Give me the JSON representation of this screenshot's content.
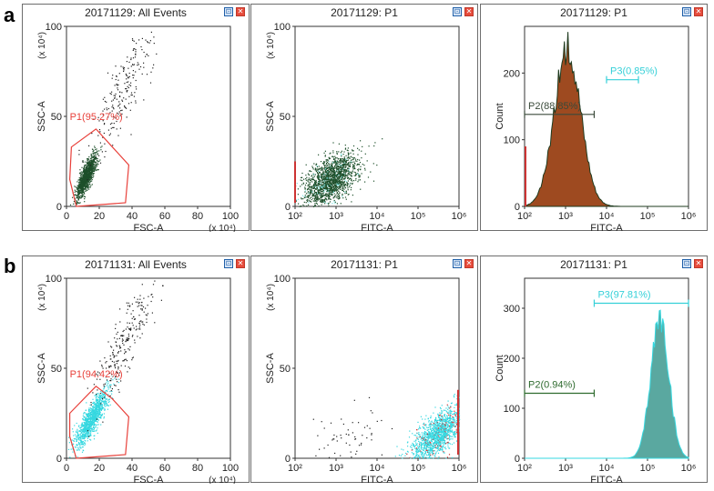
{
  "row_labels": [
    "a",
    "b"
  ],
  "buttons": {
    "min_glyph": "⊡",
    "close_glyph": "✕"
  },
  "panels": [
    {
      "title": "20171129: All Events",
      "xlabel": "FSC-A",
      "ylabel": "SSC-A",
      "x_exp": "(x 10⁴)",
      "y_exp": "(x 10⁴)",
      "x_ticks": [
        "0",
        "20",
        "40",
        "60",
        "80",
        "100"
      ],
      "y_ticks": [
        "0",
        "50",
        "100"
      ],
      "gate": "P1(95.27%)"
    },
    {
      "title": "20171129: P1",
      "xlabel": "FITC-A",
      "ylabel": "SSC-A",
      "y_exp": "(x 10⁴)",
      "x_ticks": [
        "10²",
        "10³",
        "10⁴",
        "10⁵",
        "10⁶"
      ],
      "y_ticks": [
        "0",
        "50",
        "100"
      ]
    },
    {
      "title": "20171129: P1",
      "xlabel": "FITC-A",
      "ylabel": "Count",
      "x_ticks": [
        "10²",
        "10³",
        "10⁴",
        "10⁵",
        "10⁶"
      ],
      "y_ticks": [
        "0",
        "100",
        "200"
      ],
      "gates": [
        "P2(88.85%)",
        "P3(0.85%)"
      ]
    },
    {
      "title": "20171131: All Events",
      "xlabel": "FSC-A",
      "ylabel": "SSC-A",
      "x_exp": "(x 10⁴)",
      "y_exp": "(x 10⁴)",
      "x_ticks": [
        "0",
        "20",
        "40",
        "60",
        "80",
        "100"
      ],
      "y_ticks": [
        "0",
        "50",
        "100"
      ],
      "gate": "P1(94.42%)"
    },
    {
      "title": "20171131: P1",
      "xlabel": "FITC-A",
      "ylabel": "SSC-A",
      "y_exp": "(x 10⁴)",
      "x_ticks": [
        "10²",
        "10³",
        "10⁴",
        "10⁵",
        "10⁶"
      ],
      "y_ticks": [
        "0",
        "50",
        "100"
      ]
    },
    {
      "title": "20171131: P1",
      "xlabel": "FITC-A",
      "ylabel": "Count",
      "x_ticks": [
        "10²",
        "10³",
        "10⁴",
        "10⁵",
        "10⁶"
      ],
      "y_ticks": [
        "0",
        "100",
        "200",
        "300"
      ],
      "gates": [
        "P2(0.94%)",
        "P3(97.81%)"
      ]
    }
  ],
  "chart_data": [
    {
      "type": "scatter",
      "title": "20171129: All Events",
      "xlabel": "FSC-A",
      "ylabel": "SSC-A",
      "xlim": [
        0,
        100
      ],
      "ylim": [
        0,
        100
      ],
      "units": "x 10^4",
      "gate": {
        "name": "P1",
        "percent": 95.27,
        "vertices": [
          [
            3,
            33
          ],
          [
            18,
            43
          ],
          [
            28,
            33
          ],
          [
            38,
            23
          ],
          [
            36,
            2
          ],
          [
            6,
            0
          ],
          [
            2,
            15
          ]
        ]
      },
      "clusters": [
        {
          "cx": 12,
          "cy": 17,
          "sx": 3,
          "sy": 6,
          "n": 1100,
          "corr": 0.8
        },
        {
          "cx": 35,
          "cy": 65,
          "sx": 10,
          "sy": 18,
          "n": 220,
          "corr": 0.85
        }
      ],
      "colors": {
        "dense": "#1d4f2a",
        "sparse": "#222222",
        "gate": "#e8403a"
      }
    },
    {
      "type": "scatter",
      "title": "20171129: P1",
      "xlabel": "FITC-A",
      "ylabel": "SSC-A",
      "xscale": "log",
      "xlim": [
        100,
        1000000
      ],
      "ylim": [
        0,
        100
      ],
      "units": "x 10^4",
      "clusters": [
        {
          "cx": 2.85,
          "cy": 15,
          "sx": 0.32,
          "sy": 7,
          "n": 1700,
          "corr": 0.5
        }
      ],
      "colors": {
        "dense": "#1d4f2a",
        "edge": "#7fe5e5"
      }
    },
    {
      "type": "histogram",
      "title": "20171129: P1",
      "xlabel": "FITC-A",
      "ylabel": "Count",
      "xscale": "log",
      "xlim": [
        100,
        1000000
      ],
      "ylim": [
        0,
        270
      ],
      "peak": {
        "center_log": 3.05,
        "sigma_log": 0.32,
        "height": 238
      },
      "gates": [
        {
          "name": "P2",
          "percent": 88.85,
          "from": 100,
          "to": 5000,
          "color": "#3a4a3a"
        },
        {
          "name": "P3",
          "percent": 0.85,
          "from": 10000,
          "to": 60000,
          "color": "#35d0d8"
        }
      ],
      "colors": {
        "fill": "#9e4a20",
        "edge": "#1e3a1e"
      }
    },
    {
      "type": "scatter",
      "title": "20171131: All Events",
      "xlabel": "FSC-A",
      "ylabel": "SSC-A",
      "xlim": [
        0,
        100
      ],
      "ylim": [
        0,
        100
      ],
      "units": "x 10^4",
      "gate": {
        "name": "P1",
        "percent": 94.42,
        "vertices": [
          [
            2,
            25
          ],
          [
            18,
            40
          ],
          [
            28,
            33
          ],
          [
            38,
            23
          ],
          [
            36,
            2
          ],
          [
            6,
            0
          ],
          [
            2,
            12
          ]
        ]
      },
      "clusters": [
        {
          "cx": 15,
          "cy": 22,
          "sx": 5,
          "sy": 8,
          "n": 1100,
          "corr": 0.85
        },
        {
          "cx": 35,
          "cy": 65,
          "sx": 10,
          "sy": 18,
          "n": 260,
          "corr": 0.85
        }
      ],
      "colors": {
        "dense": "#35d8e0",
        "sparse": "#222222",
        "gate": "#e8403a"
      }
    },
    {
      "type": "scatter",
      "title": "20171131: P1",
      "xlabel": "FITC-A",
      "ylabel": "SSC-A",
      "xscale": "log",
      "xlim": [
        100,
        1000000
      ],
      "ylim": [
        0,
        100
      ],
      "units": "x 10^4",
      "clusters": [
        {
          "cx": 5.5,
          "cy": 14,
          "sx": 0.35,
          "sy": 8,
          "n": 1500,
          "corr": 0.7
        },
        {
          "cx": 3.3,
          "cy": 12,
          "sx": 0.45,
          "sy": 8,
          "n": 60,
          "corr": 0.2
        }
      ],
      "colors": {
        "dense": "#35d8e0",
        "sparse": "#222222",
        "edge": "#cc3333"
      }
    },
    {
      "type": "histogram",
      "title": "20171131: P1",
      "xlabel": "FITC-A",
      "ylabel": "Count",
      "xscale": "log",
      "xlim": [
        100,
        1000000
      ],
      "ylim": [
        0,
        360
      ],
      "peak": {
        "center_log": 5.3,
        "sigma_log": 0.22,
        "height": 280
      },
      "gates": [
        {
          "name": "P2",
          "percent": 0.94,
          "from": 100,
          "to": 5000,
          "color": "#2f6b2f"
        },
        {
          "name": "P3",
          "percent": 97.81,
          "from": 5000,
          "to": 1000000,
          "color": "#35d0d8"
        }
      ],
      "colors": {
        "fill": "#5aa8a0",
        "edge": "#35d8e0"
      }
    }
  ]
}
